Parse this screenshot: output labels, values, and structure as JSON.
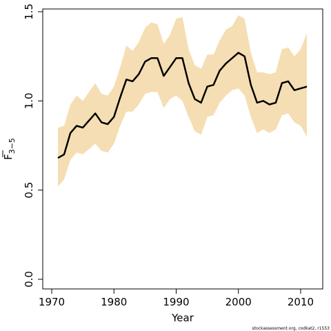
{
  "chart_data": {
    "type": "line",
    "xlabel": "Year",
    "ylabel": "F",
    "ylabel_subscript": "3−5",
    "xlim": [
      1970,
      2012
    ],
    "ylim": [
      0.0,
      1.5
    ],
    "x_ticks": [
      1970,
      1980,
      1990,
      2000,
      2010
    ],
    "y_ticks": [
      "0.0",
      "0.5",
      "1.0",
      "1.5"
    ],
    "grid": false,
    "colors": {
      "line": "#000000",
      "band": "#f5deb3"
    },
    "x": [
      1971,
      1972,
      1973,
      1974,
      1975,
      1976,
      1977,
      1978,
      1979,
      1980,
      1981,
      1982,
      1983,
      1984,
      1985,
      1986,
      1987,
      1988,
      1989,
      1990,
      1991,
      1992,
      1993,
      1994,
      1995,
      1996,
      1997,
      1998,
      1999,
      2000,
      2001,
      2002,
      2003,
      2004,
      2005,
      2006,
      2007,
      2008,
      2009,
      2010,
      2011
    ],
    "series": [
      {
        "values": [
          0.68,
          0.7,
          0.82,
          0.86,
          0.85,
          0.89,
          0.93,
          0.88,
          0.87,
          0.91,
          1.02,
          1.12,
          1.11,
          1.15,
          1.22,
          1.24,
          1.24,
          1.14,
          1.19,
          1.24,
          1.24,
          1.1,
          1.01,
          0.99,
          1.08,
          1.09,
          1.17,
          1.21,
          1.24,
          1.27,
          1.25,
          1.09,
          0.99,
          1.0,
          0.98,
          0.99,
          1.1,
          1.11,
          1.06,
          1.07,
          1.08
        ],
        "lower": [
          0.52,
          0.56,
          0.67,
          0.71,
          0.7,
          0.73,
          0.76,
          0.72,
          0.71,
          0.76,
          0.86,
          0.94,
          0.94,
          0.98,
          1.04,
          1.05,
          1.05,
          0.96,
          1.01,
          1.03,
          1.0,
          0.91,
          0.83,
          0.81,
          0.91,
          0.92,
          0.99,
          1.03,
          1.06,
          1.07,
          1.03,
          0.91,
          0.82,
          0.84,
          0.82,
          0.84,
          0.92,
          0.93,
          0.88,
          0.86,
          0.8
        ],
        "upper": [
          0.85,
          0.86,
          0.98,
          1.03,
          1.0,
          1.05,
          1.1,
          1.04,
          1.03,
          1.08,
          1.19,
          1.31,
          1.28,
          1.33,
          1.41,
          1.44,
          1.43,
          1.32,
          1.37,
          1.46,
          1.47,
          1.29,
          1.2,
          1.18,
          1.26,
          1.26,
          1.34,
          1.4,
          1.42,
          1.48,
          1.46,
          1.27,
          1.16,
          1.16,
          1.15,
          1.16,
          1.29,
          1.3,
          1.25,
          1.29,
          1.38
        ]
      }
    ]
  },
  "credit": "stockassessment.org, codkat2, r1553"
}
